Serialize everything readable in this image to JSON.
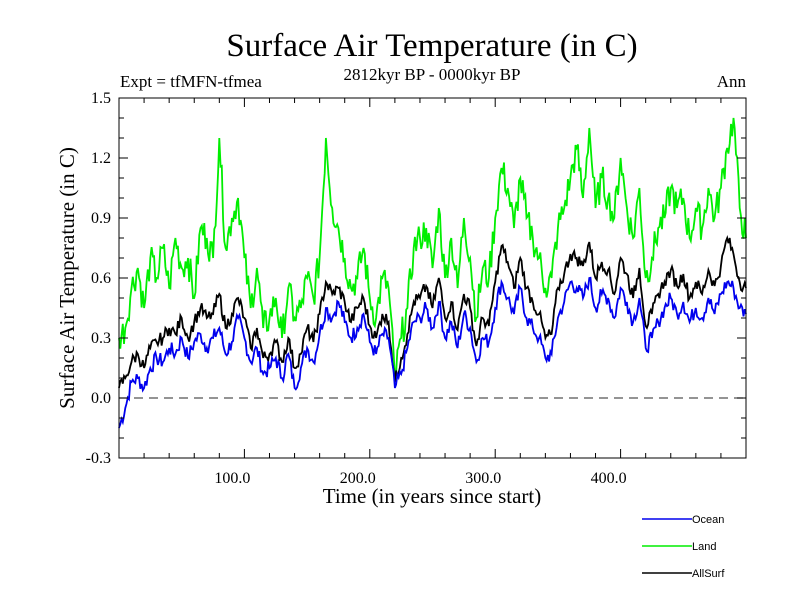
{
  "chart_data": {
    "type": "line",
    "title": "Surface Air Temperature (in C)",
    "subtitle_left": "Expt = tfMFN-tfmea",
    "subtitle_center": "2812kyr BP - 0000kyr BP",
    "subtitle_right": "Ann",
    "xlabel": "Time (in years since start)",
    "ylabel": "Surface Air Temperature (in C)",
    "xlim": [
      0,
      500
    ],
    "ylim": [
      -0.3,
      1.5
    ],
    "xticks": [
      100,
      200,
      300,
      400
    ],
    "xtick_labels": [
      "100.0",
      "200.0",
      "300.0",
      "400.0"
    ],
    "xminor_step": 20,
    "yticks": [
      -0.3,
      0.0,
      0.3,
      0.6,
      0.9,
      1.2,
      1.5
    ],
    "ytick_labels": [
      "-0.3",
      "0.0",
      "0.3",
      "0.6",
      "0.9",
      "1.2",
      "1.5"
    ],
    "yminor_step": 0.1,
    "reference_line": {
      "y": 0.0,
      "style": "dashed",
      "color": "#555555"
    },
    "grid": false,
    "legend": "bottom-right",
    "x_step": 5,
    "x_start": 0,
    "series": [
      {
        "name": "Ocean",
        "color": "#0000ee",
        "values": [
          -0.15,
          -0.05,
          0.08,
          0.1,
          0.05,
          0.15,
          0.2,
          0.18,
          0.25,
          0.22,
          0.3,
          0.2,
          0.28,
          0.32,
          0.25,
          0.3,
          0.35,
          0.22,
          0.28,
          0.4,
          0.3,
          0.18,
          0.25,
          0.12,
          0.15,
          0.2,
          0.1,
          0.22,
          0.05,
          0.15,
          0.25,
          0.18,
          0.32,
          0.45,
          0.4,
          0.48,
          0.38,
          0.3,
          0.35,
          0.42,
          0.28,
          0.22,
          0.32,
          0.3,
          0.05,
          0.12,
          0.25,
          0.38,
          0.4,
          0.45,
          0.35,
          0.48,
          0.3,
          0.38,
          0.25,
          0.42,
          0.35,
          0.18,
          0.3,
          0.28,
          0.45,
          0.58,
          0.5,
          0.42,
          0.55,
          0.4,
          0.35,
          0.3,
          0.2,
          0.22,
          0.4,
          0.48,
          0.58,
          0.55,
          0.5,
          0.6,
          0.45,
          0.52,
          0.5,
          0.4,
          0.55,
          0.48,
          0.38,
          0.5,
          0.25,
          0.3,
          0.38,
          0.45,
          0.5,
          0.42,
          0.48,
          0.38,
          0.45,
          0.4,
          0.5,
          0.42,
          0.52,
          0.58,
          0.55,
          0.45,
          0.42
        ]
      },
      {
        "name": "Land",
        "color": "#00ee00",
        "values": [
          0.3,
          0.35,
          0.55,
          0.65,
          0.45,
          0.7,
          0.6,
          0.75,
          0.55,
          0.8,
          0.65,
          0.7,
          0.5,
          0.85,
          0.8,
          0.7,
          1.3,
          0.75,
          0.9,
          1.0,
          0.7,
          0.45,
          0.65,
          0.35,
          0.4,
          0.5,
          0.3,
          0.55,
          0.4,
          0.45,
          0.6,
          0.5,
          0.7,
          1.3,
          0.95,
          0.85,
          0.7,
          0.55,
          0.6,
          0.75,
          0.5,
          0.4,
          0.6,
          0.55,
          0.1,
          0.3,
          0.45,
          0.75,
          0.8,
          0.85,
          0.65,
          0.95,
          0.6,
          0.8,
          0.55,
          0.9,
          0.7,
          0.4,
          0.65,
          0.6,
          0.9,
          1.15,
          1.05,
          0.85,
          1.1,
          0.9,
          0.8,
          0.7,
          0.55,
          0.6,
          0.85,
          0.95,
          1.1,
          1.25,
          1.0,
          1.35,
          0.95,
          1.1,
          1.0,
          0.9,
          1.2,
          0.95,
          0.8,
          1.05,
          0.6,
          0.7,
          0.85,
          0.9,
          1.05,
          0.95,
          1.0,
          0.8,
          0.95,
          0.85,
          1.05,
          0.9,
          1.05,
          1.25,
          1.4,
          0.95,
          0.8
        ]
      },
      {
        "name": "AllSurf",
        "color": "#000000",
        "values": [
          0.05,
          0.1,
          0.18,
          0.22,
          0.15,
          0.25,
          0.28,
          0.3,
          0.35,
          0.32,
          0.4,
          0.3,
          0.38,
          0.45,
          0.4,
          0.42,
          0.52,
          0.35,
          0.42,
          0.5,
          0.4,
          0.25,
          0.35,
          0.2,
          0.22,
          0.28,
          0.18,
          0.3,
          0.15,
          0.22,
          0.35,
          0.28,
          0.42,
          0.58,
          0.52,
          0.55,
          0.48,
          0.38,
          0.45,
          0.5,
          0.36,
          0.3,
          0.42,
          0.38,
          0.08,
          0.2,
          0.32,
          0.48,
          0.5,
          0.56,
          0.45,
          0.6,
          0.4,
          0.48,
          0.34,
          0.52,
          0.45,
          0.26,
          0.4,
          0.36,
          0.58,
          0.76,
          0.68,
          0.55,
          0.7,
          0.55,
          0.48,
          0.42,
          0.3,
          0.32,
          0.55,
          0.62,
          0.72,
          0.7,
          0.66,
          0.78,
          0.6,
          0.68,
          0.64,
          0.52,
          0.7,
          0.62,
          0.5,
          0.65,
          0.36,
          0.42,
          0.52,
          0.58,
          0.64,
          0.56,
          0.62,
          0.5,
          0.58,
          0.52,
          0.64,
          0.56,
          0.66,
          0.8,
          0.72,
          0.58,
          0.55
        ]
      }
    ]
  }
}
